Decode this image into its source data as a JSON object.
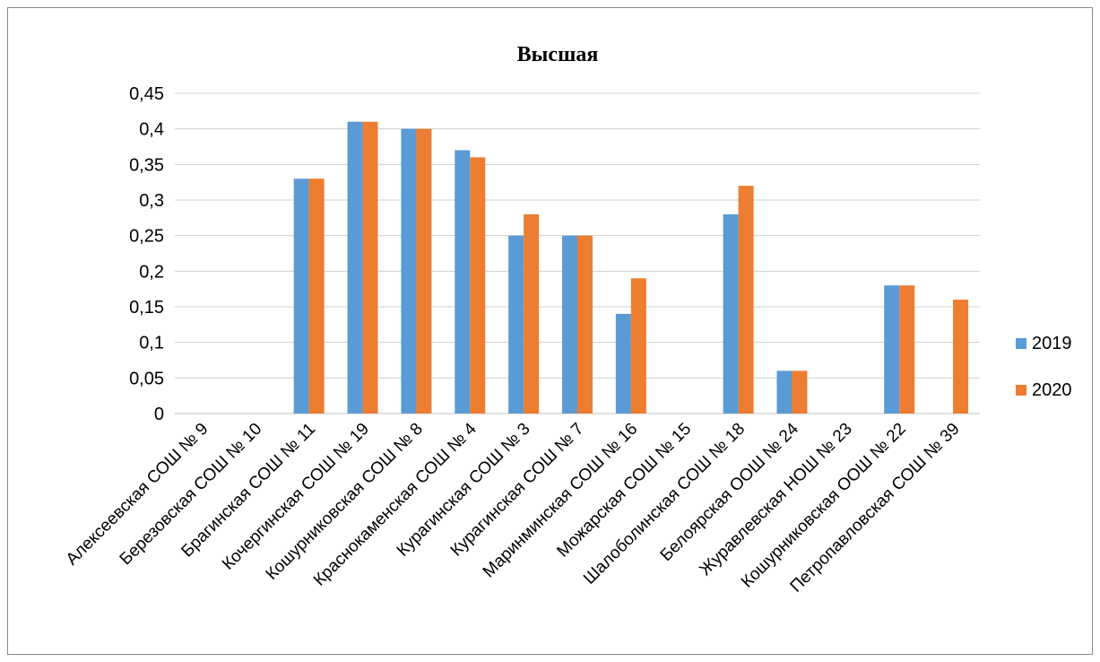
{
  "chart_data": {
    "type": "bar",
    "title": "Высшая",
    "xlabel": "",
    "ylabel": "",
    "ylim": [
      0,
      0.45
    ],
    "yticks": [
      "0",
      "0,05",
      "0,1",
      "0,15",
      "0,2",
      "0,25",
      "0,3",
      "0,35",
      "0,4",
      "0,45"
    ],
    "grid": true,
    "legend_position": "right",
    "categories": [
      "Алексеевская СОШ № 9",
      "Березовская СОШ № 10",
      "Брагинская СОШ № 11",
      "Кочергинская СОШ № 19",
      "Кошурниковская СОШ № 8",
      "Краснокаменская СОШ № 4",
      "Курагинская СОШ № 3",
      "Курагинская СОШ № 7",
      "Маринминская СОШ № 16",
      "Можарская СОШ № 15",
      "Шалоболинская СОШ № 18",
      "Белоярская ООШ № 24",
      "Журавлевская НОШ № 23",
      "Кошурниковская ООШ № 22",
      "Петропавловская СОШ № 39"
    ],
    "series": [
      {
        "name": "2019",
        "color": "#5B9BD5",
        "values": [
          0,
          0,
          0.33,
          0.41,
          0.4,
          0.37,
          0.25,
          0.25,
          0.14,
          0,
          0.28,
          0.06,
          0,
          0.18,
          0
        ]
      },
      {
        "name": "2020",
        "color": "#ED7D31",
        "values": [
          0,
          0,
          0.33,
          0.41,
          0.4,
          0.36,
          0.28,
          0.25,
          0.19,
          0,
          0.32,
          0.06,
          0,
          0.18,
          0.16
        ]
      }
    ]
  }
}
